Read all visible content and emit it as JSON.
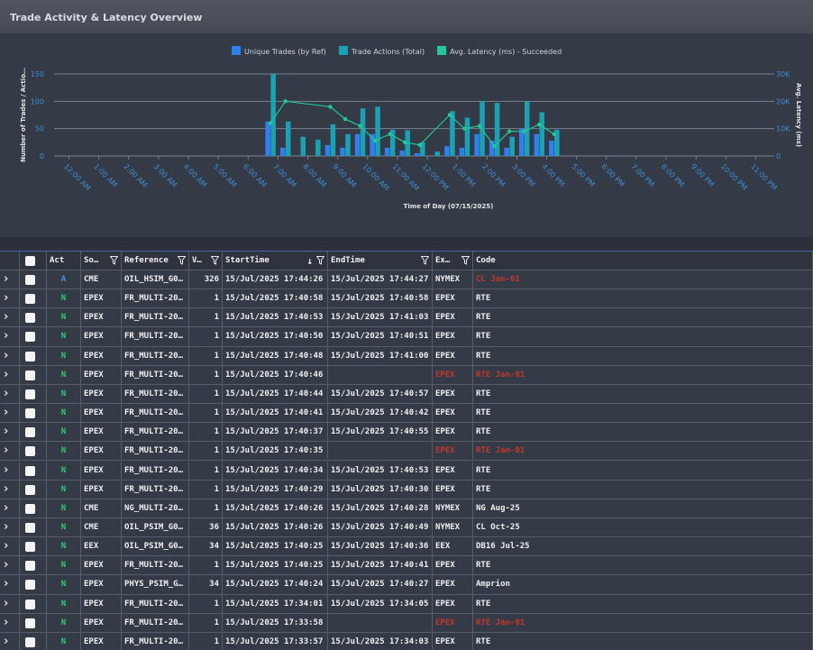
{
  "header": {
    "title": "Trade Activity & Latency Overview"
  },
  "chart_data": {
    "type": "bar",
    "xlabel": "Time of Day (07/15/2025)",
    "ylabel": "Number of Trades / Actio…",
    "y2label": "Avg. Latency (ms)",
    "legend": "top",
    "grid": true,
    "xlim": [
      -0.5,
      23.5
    ],
    "xticks": [
      {
        "value": 0,
        "label": "12:00 AM"
      },
      {
        "value": 1,
        "label": "1:00 AM"
      },
      {
        "value": 2,
        "label": "2:00 AM"
      },
      {
        "value": 3,
        "label": "3:00 AM"
      },
      {
        "value": 4,
        "label": "4:00 AM"
      },
      {
        "value": 5,
        "label": "5:00 AM"
      },
      {
        "value": 6,
        "label": "6:00 AM"
      },
      {
        "value": 7,
        "label": "7:00 AM"
      },
      {
        "value": 8,
        "label": "8:00 AM"
      },
      {
        "value": 9,
        "label": "9:00 AM"
      },
      {
        "value": 10,
        "label": "10:00 AM"
      },
      {
        "value": 11,
        "label": "11:00 AM"
      },
      {
        "value": 12,
        "label": "12:00 PM"
      },
      {
        "value": 13,
        "label": "1:00 PM"
      },
      {
        "value": 14,
        "label": "2:00 PM"
      },
      {
        "value": 15,
        "label": "3:00 PM"
      },
      {
        "value": 16,
        "label": "4:00 PM"
      },
      {
        "value": 17,
        "label": "5:00 PM"
      },
      {
        "value": 18,
        "label": "6:00 PM"
      },
      {
        "value": 19,
        "label": "7:00 PM"
      },
      {
        "value": 20,
        "label": "8:00 PM"
      },
      {
        "value": 21,
        "label": "9:00 PM"
      },
      {
        "value": 22,
        "label": "10:00 PM"
      },
      {
        "value": 23,
        "label": "11:00 PM"
      }
    ],
    "ylim": [
      0,
      150
    ],
    "yticks": [
      0,
      50,
      100,
      150
    ],
    "y2lim": [
      0,
      30000
    ],
    "y2ticks": [
      0,
      {
        "value": 10000,
        "label": "10K"
      },
      {
        "value": 20000,
        "label": "20K"
      },
      {
        "value": 30000,
        "label": "30K"
      }
    ],
    "x": [
      6.75,
      7.25,
      7.75,
      8.25,
      8.75,
      9.25,
      9.75,
      10.25,
      10.75,
      11.25,
      11.75,
      12.25,
      12.75,
      13.25,
      13.75,
      14.25,
      14.75,
      15.25,
      15.75,
      16.25
    ],
    "series": [
      {
        "name": "Unique Trades (by Ref)",
        "color": "#2f80ed",
        "values": [
          63,
          15,
          0,
          0,
          20,
          15,
          40,
          40,
          15,
          10,
          5,
          0,
          18,
          15,
          40,
          28,
          15,
          50,
          40,
          28
        ]
      },
      {
        "name": "Trade Actions (Total)",
        "color": "#1ba1b5",
        "values": [
          150,
          63,
          35,
          30,
          58,
          40,
          87,
          90,
          48,
          47,
          25,
          8,
          82,
          70,
          100,
          97,
          35,
          100,
          80,
          48
        ]
      },
      {
        "name": "Avg. Latency (ms) - Succeeded",
        "color": "#20c997",
        "type": "line",
        "axis": "y2",
        "x": [
          6.75,
          7.25,
          8.75,
          9.25,
          9.75,
          10.25,
          10.75,
          11.25,
          11.75,
          12.75,
          13.25,
          13.75,
          14.25,
          14.75,
          15.25,
          15.75,
          16.25
        ],
        "values": [
          12000,
          20000,
          18000,
          13500,
          11000,
          5600,
          8000,
          5000,
          4000,
          15000,
          10000,
          11000,
          3600,
          9000,
          9000,
          11500,
          8000
        ]
      }
    ]
  },
  "table": {
    "columns": [
      "Act",
      "So…",
      "Reference",
      "V…",
      "StartTime",
      "EndTime",
      "Ex…",
      "Code"
    ],
    "rows": [
      {
        "act": "A",
        "source": "CME",
        "reference": "OIL_HSIM_G0…",
        "volume": 326,
        "start": "15/Jul/2025 17:44:26",
        "end": "15/Jul/2025 17:44:27",
        "exchange": "NYMEX",
        "code": "CL Jan-01",
        "code_color": "#c0392b"
      },
      {
        "act": "N",
        "source": "EPEX",
        "reference": "FR_MULTI-20…",
        "volume": 1,
        "start": "15/Jul/2025 17:40:58",
        "end": "15/Jul/2025 17:40:58",
        "exchange": "EPEX",
        "code": "RTE"
      },
      {
        "act": "N",
        "source": "EPEX",
        "reference": "FR_MULTI-20…",
        "volume": 1,
        "start": "15/Jul/2025 17:40:53",
        "end": "15/Jul/2025 17:41:03",
        "exchange": "EPEX",
        "code": "RTE"
      },
      {
        "act": "N",
        "source": "EPEX",
        "reference": "FR_MULTI-20…",
        "volume": 1,
        "start": "15/Jul/2025 17:40:50",
        "end": "15/Jul/2025 17:40:51",
        "exchange": "EPEX",
        "code": "RTE"
      },
      {
        "act": "N",
        "source": "EPEX",
        "reference": "FR_MULTI-20…",
        "volume": 1,
        "start": "15/Jul/2025 17:40:48",
        "end": "15/Jul/2025 17:41:00",
        "exchange": "EPEX",
        "code": "RTE"
      },
      {
        "act": "N",
        "source": "EPEX",
        "reference": "FR_MULTI-20…",
        "volume": 1,
        "start": "15/Jul/2025 17:40:46",
        "end": null,
        "exchange": "EPEX",
        "code": "RTE Jan-01",
        "exchange_color": "#c0392b",
        "code_color": "#c0392b"
      },
      {
        "act": "N",
        "source": "EPEX",
        "reference": "FR_MULTI-20…",
        "volume": 1,
        "start": "15/Jul/2025 17:40:44",
        "end": "15/Jul/2025 17:40:57",
        "exchange": "EPEX",
        "code": "RTE"
      },
      {
        "act": "N",
        "source": "EPEX",
        "reference": "FR_MULTI-20…",
        "volume": 1,
        "start": "15/Jul/2025 17:40:41",
        "end": "15/Jul/2025 17:40:42",
        "exchange": "EPEX",
        "code": "RTE"
      },
      {
        "act": "N",
        "source": "EPEX",
        "reference": "FR_MULTI-20…",
        "volume": 1,
        "start": "15/Jul/2025 17:40:37",
        "end": "15/Jul/2025 17:40:55",
        "exchange": "EPEX",
        "code": "RTE"
      },
      {
        "act": "N",
        "source": "EPEX",
        "reference": "FR_MULTI-20…",
        "volume": 1,
        "start": "15/Jul/2025 17:40:35",
        "end": null,
        "exchange": "EPEX",
        "code": "RTE Jan-01",
        "exchange_color": "#c0392b",
        "code_color": "#c0392b"
      },
      {
        "act": "N",
        "source": "EPEX",
        "reference": "FR_MULTI-20…",
        "volume": 1,
        "start": "15/Jul/2025 17:40:34",
        "end": "15/Jul/2025 17:40:53",
        "exchange": "EPEX",
        "code": "RTE"
      },
      {
        "act": "N",
        "source": "EPEX",
        "reference": "FR_MULTI-20…",
        "volume": 1,
        "start": "15/Jul/2025 17:40:29",
        "end": "15/Jul/2025 17:40:30",
        "exchange": "EPEX",
        "code": "RTE"
      },
      {
        "act": "N",
        "source": "CME",
        "reference": "NG_MULTI-20…",
        "volume": 1,
        "start": "15/Jul/2025 17:40:26",
        "end": "15/Jul/2025 17:40:28",
        "exchange": "NYMEX",
        "code": "NG Aug-25"
      },
      {
        "act": "N",
        "source": "CME",
        "reference": "OIL_PSIM_G0…",
        "volume": 36,
        "start": "15/Jul/2025 17:40:26",
        "end": "15/Jul/2025 17:40:49",
        "exchange": "NYMEX",
        "code": "CL Oct-25"
      },
      {
        "act": "N",
        "source": "EEX",
        "reference": "OIL_PSIM_G0…",
        "volume": 34,
        "start": "15/Jul/2025 17:40:25",
        "end": "15/Jul/2025 17:40:36",
        "exchange": "EEX",
        "code": "DB16 Jul-25"
      },
      {
        "act": "N",
        "source": "EPEX",
        "reference": "FR_MULTI-20…",
        "volume": 1,
        "start": "15/Jul/2025 17:40:25",
        "end": "15/Jul/2025 17:40:41",
        "exchange": "EPEX",
        "code": "RTE"
      },
      {
        "act": "N",
        "source": "EPEX",
        "reference": "PHYS_PSIM_G…",
        "volume": 34,
        "start": "15/Jul/2025 17:40:24",
        "end": "15/Jul/2025 17:40:27",
        "exchange": "EPEX",
        "code": "Amprion"
      },
      {
        "act": "N",
        "source": "EPEX",
        "reference": "FR_MULTI-20…",
        "volume": 1,
        "start": "15/Jul/2025 17:34:01",
        "end": "15/Jul/2025 17:34:05",
        "exchange": "EPEX",
        "code": "RTE"
      },
      {
        "act": "N",
        "source": "EPEX",
        "reference": "FR_MULTI-20…",
        "volume": 1,
        "start": "15/Jul/2025 17:33:58",
        "end": null,
        "exchange": "EPEX",
        "code": "RTE Jan-01",
        "exchange_color": "#c0392b",
        "code_color": "#c0392b"
      },
      {
        "act": "N",
        "source": "EPEX",
        "reference": "FR_MULTI-20…",
        "volume": 1,
        "start": "15/Jul/2025 17:33:57",
        "end": "15/Jul/2025 17:34:03",
        "exchange": "EPEX",
        "code": "RTE"
      }
    ]
  }
}
